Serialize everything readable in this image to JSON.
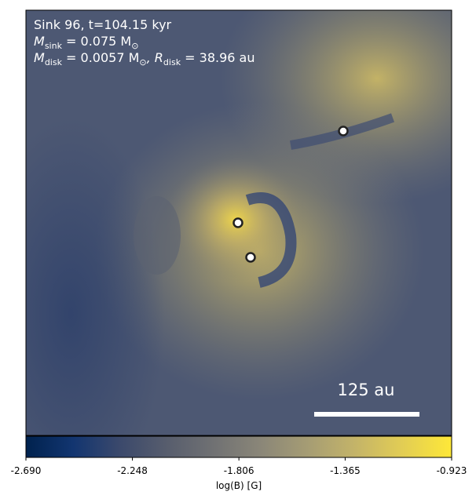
{
  "annotation": {
    "lines": [
      {
        "text": "Sink 96, t=104.15 kyr"
      },
      {
        "symbol": "M",
        "sub": "sink",
        "text": " = 0.075 M",
        "unit_sub": "⊙"
      },
      {
        "symbol": "M",
        "sub": "disk",
        "text": " = 0.0057 M",
        "unit_sub": "⊙",
        "symbol2": ", R",
        "sub2": "disk",
        "text2": " = 38.96 au"
      }
    ]
  },
  "scale_bar": {
    "label": "125 au"
  },
  "colorbar": {
    "label": "log(B) [G]",
    "lim": [
      -2.69,
      -0.923
    ],
    "ticks": [
      {
        "value": -2.69,
        "label": "-2.690"
      },
      {
        "value": -2.248,
        "label": "-2.248"
      },
      {
        "value": -1.806,
        "label": "-1.806"
      },
      {
        "value": -1.365,
        "label": "-1.365"
      },
      {
        "value": -0.923,
        "label": "-0.923"
      }
    ]
  }
}
